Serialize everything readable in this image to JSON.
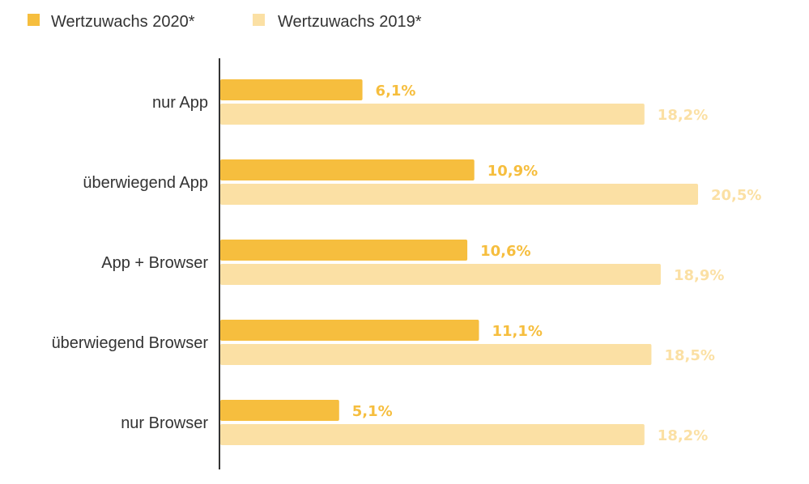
{
  "colors": {
    "series_2020": "#f6be3e",
    "series_2019": "#fbe0a4",
    "axis": "#333333",
    "text": "#333333"
  },
  "chart_data": {
    "type": "bar",
    "orientation": "horizontal",
    "categories": [
      "nur App",
      "überwiegend App",
      "App + Browser",
      "überwiegend Browser",
      "nur Browser"
    ],
    "series": [
      {
        "name": "Wertzuwachs 2020*",
        "values": [
          6.1,
          10.9,
          10.6,
          11.1,
          5.1
        ],
        "labels": [
          "6,1%",
          "10,9%",
          "10,6%",
          "11,1%",
          "5,1%"
        ]
      },
      {
        "name": "Wertzuwachs 2019*",
        "values": [
          18.2,
          20.5,
          18.9,
          18.5,
          18.2
        ],
        "labels": [
          "18,2%",
          "20,5%",
          "18,9%",
          "18,5%",
          "18,2%"
        ]
      }
    ],
    "xlim": [
      0,
      20.5
    ],
    "grid": false,
    "legend_position": "top-left"
  }
}
